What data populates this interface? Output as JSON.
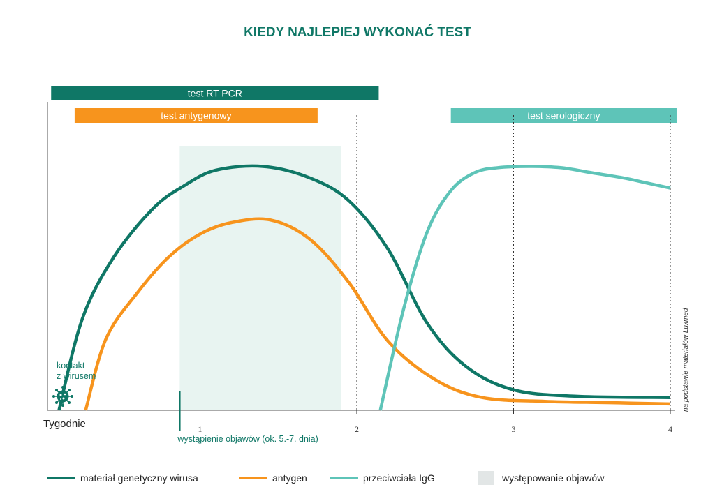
{
  "title": "KIEDY NAJLEPIEJ WYKONAĆ TEST",
  "colors": {
    "title": "#0f7766",
    "genetic": "#0f7766",
    "antigen": "#f7941d",
    "igg": "#5ec4b8",
    "symptoms": "#e8f4f1",
    "pcr_bar": "#0f7766",
    "antigen_bar": "#f7941d",
    "sero_bar": "#5ec4b8",
    "legend_symptoms": "#e2e6e6",
    "virus_icon": "#0f7766"
  },
  "test_bars": [
    {
      "label": "test RT PCR",
      "start": 0.05,
      "end": 2.14
    },
    {
      "label": "test antygenowy",
      "start": 0.2,
      "end": 1.75
    },
    {
      "label": "test serologiczny",
      "start": 2.6,
      "end": 4.04
    }
  ],
  "contact_label": [
    "kontakt",
    "z wirusem"
  ],
  "symptom_onset_label": "wystąpienie objawów (ok. 5.-7. dnia)",
  "source_note": "na podstawie materiałów Luxmed",
  "legend": [
    {
      "label": "materiał genetyczny wirusa",
      "kind": "line",
      "color_key": "genetic"
    },
    {
      "label": "antygen",
      "kind": "line",
      "color_key": "antigen"
    },
    {
      "label": "przeciwciała IgG",
      "kind": "line",
      "color_key": "igg"
    },
    {
      "label": "występowanie objawów",
      "kind": "box",
      "color_key": "legend_symptoms"
    }
  ],
  "chart_data": {
    "type": "line",
    "title": "KIEDY NAJLEPIEJ WYKONAĆ TEST",
    "xlabel": "Tygodnie",
    "ylabel": "",
    "xlim": [
      -0.05,
      4.05
    ],
    "ylim": [
      0,
      1
    ],
    "x_ticks": [
      1,
      2,
      3,
      4
    ],
    "x_tick_labels": [
      "1",
      "2",
      "3",
      "4"
    ],
    "symptom_onset": 0.87,
    "symptoms_range": [
      0.87,
      1.9
    ],
    "series": [
      {
        "name": "materiał genetyczny wirusa",
        "color_key": "genetic",
        "x": [
          0.1,
          0.25,
          0.45,
          0.7,
          0.9,
          1.1,
          1.4,
          1.7,
          1.95,
          2.2,
          2.45,
          2.7,
          3.0,
          3.4,
          4.0
        ],
        "y": [
          0.0,
          0.36,
          0.6,
          0.79,
          0.88,
          0.94,
          0.955,
          0.91,
          0.82,
          0.63,
          0.34,
          0.17,
          0.08,
          0.055,
          0.05
        ]
      },
      {
        "name": "antygen",
        "color_key": "antigen",
        "x": [
          0.27,
          0.4,
          0.6,
          0.8,
          1.0,
          1.2,
          1.45,
          1.7,
          1.95,
          2.2,
          2.5,
          2.8,
          3.2,
          3.6,
          4.0
        ],
        "y": [
          0.0,
          0.28,
          0.46,
          0.6,
          0.69,
          0.735,
          0.745,
          0.67,
          0.5,
          0.27,
          0.12,
          0.05,
          0.035,
          0.03,
          0.025
        ]
      },
      {
        "name": "przeciwciała IgG",
        "color_key": "igg",
        "x": [
          2.15,
          2.3,
          2.45,
          2.6,
          2.75,
          2.9,
          3.1,
          3.3,
          3.5,
          3.7,
          3.85,
          4.0
        ],
        "y": [
          0.0,
          0.4,
          0.7,
          0.86,
          0.93,
          0.95,
          0.955,
          0.95,
          0.93,
          0.91,
          0.89,
          0.87
        ]
      }
    ]
  }
}
